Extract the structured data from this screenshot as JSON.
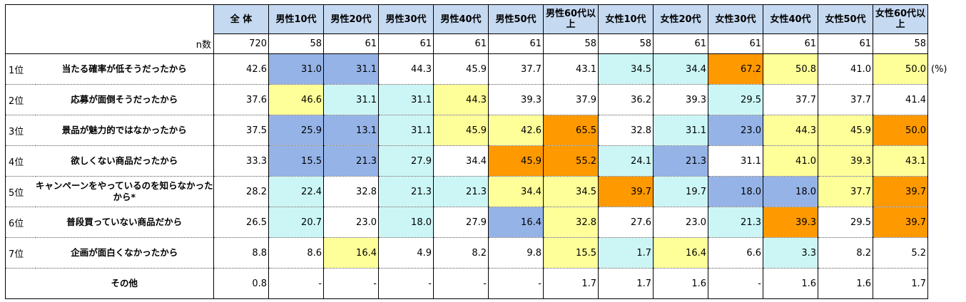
{
  "headers": [
    "全 体",
    "男性10代",
    "男性20代",
    "男性30代",
    "男性40代",
    "男性50代",
    "男性60代以上",
    "女性10代",
    "女性20代",
    "女性30代",
    "女性40代",
    "女性50代",
    "女性60代以上"
  ],
  "n_label": "n数",
  "n_values": [
    "720",
    "58",
    "61",
    "61",
    "61",
    "61",
    "58",
    "58",
    "61",
    "61",
    "61",
    "61",
    "58"
  ],
  "unit": "(%)",
  "rows": [
    {
      "rank": "1位",
      "label": "当たる確率が低そうだったから",
      "values": [
        "42.6",
        "31.0",
        "31.1",
        "44.3",
        "45.9",
        "37.7",
        "43.1",
        "34.5",
        "34.4",
        "67.2",
        "50.8",
        "41.0",
        "50.0"
      ],
      "colors": [
        "",
        "blue",
        "blue",
        "",
        "",
        "",
        "",
        "cyan",
        "cyan",
        "orange",
        "yellow",
        "",
        "yellow"
      ]
    },
    {
      "rank": "2位",
      "label": "応募が面倒そうだったから",
      "values": [
        "37.6",
        "46.6",
        "31.1",
        "31.1",
        "44.3",
        "39.3",
        "37.9",
        "36.2",
        "39.3",
        "29.5",
        "37.7",
        "37.7",
        "41.4"
      ],
      "colors": [
        "",
        "yellow",
        "cyan",
        "cyan",
        "yellow",
        "",
        "",
        "",
        "",
        "cyan",
        "",
        "",
        ""
      ]
    },
    {
      "rank": "3位",
      "label": "景品が魅力的ではなかったから",
      "values": [
        "37.5",
        "25.9",
        "13.1",
        "31.1",
        "45.9",
        "42.6",
        "65.5",
        "32.8",
        "31.1",
        "23.0",
        "44.3",
        "45.9",
        "50.0"
      ],
      "colors": [
        "",
        "blue",
        "blue",
        "cyan",
        "yellow",
        "yellow",
        "orange",
        "",
        "cyan",
        "blue",
        "yellow",
        "yellow",
        "orange"
      ]
    },
    {
      "rank": "4位",
      "label": "欲しくない商品だったから",
      "values": [
        "33.3",
        "15.5",
        "21.3",
        "27.9",
        "34.4",
        "45.9",
        "55.2",
        "24.1",
        "21.3",
        "31.1",
        "41.0",
        "39.3",
        "43.1"
      ],
      "colors": [
        "",
        "blue",
        "blue",
        "cyan",
        "",
        "orange",
        "orange",
        "cyan",
        "blue",
        "",
        "yellow",
        "yellow",
        "yellow"
      ]
    },
    {
      "rank": "5位",
      "label": "キャンペーンをやっているのを知らなかったから*",
      "values": [
        "28.2",
        "22.4",
        "32.8",
        "21.3",
        "21.3",
        "34.4",
        "34.5",
        "39.7",
        "19.7",
        "18.0",
        "18.0",
        "37.7",
        "39.7"
      ],
      "colors": [
        "",
        "cyan",
        "",
        "cyan",
        "cyan",
        "yellow",
        "yellow",
        "orange",
        "cyan",
        "blue",
        "blue",
        "yellow",
        "orange"
      ]
    },
    {
      "rank": "6位",
      "label": "普段買っていない商品だから",
      "values": [
        "26.5",
        "20.7",
        "23.0",
        "18.0",
        "27.9",
        "16.4",
        "32.8",
        "27.6",
        "23.0",
        "21.3",
        "39.3",
        "29.5",
        "39.7"
      ],
      "colors": [
        "",
        "cyan",
        "",
        "cyan",
        "",
        "blue",
        "yellow",
        "",
        "",
        "cyan",
        "orange",
        "",
        "orange"
      ]
    },
    {
      "rank": "7位",
      "label": "企画が面白くなかったから",
      "values": [
        "8.8",
        "8.6",
        "16.4",
        "4.9",
        "8.2",
        "9.8",
        "15.5",
        "1.7",
        "16.4",
        "6.6",
        "3.3",
        "8.2",
        "5.2"
      ],
      "colors": [
        "",
        "",
        "yellow",
        "",
        "",
        "",
        "yellow",
        "cyan",
        "yellow",
        "",
        "cyan",
        "",
        ""
      ]
    },
    {
      "rank": "",
      "label": "その他",
      "values": [
        "0.8",
        "-",
        "-",
        "-",
        "-",
        "-",
        "1.7",
        "1.7",
        "1.6",
        "-",
        "1.6",
        "1.6",
        "1.7"
      ],
      "colors": [
        "",
        "",
        "",
        "",
        "",
        "",
        "",
        "",
        "",
        "",
        "",
        "",
        ""
      ]
    }
  ],
  "colors": {
    "header": "#c5d9f1",
    "blue": "#95b3e7",
    "cyan": "#ccf6f6",
    "yellow": "#ffff99",
    "orange": "#ff9900"
  }
}
